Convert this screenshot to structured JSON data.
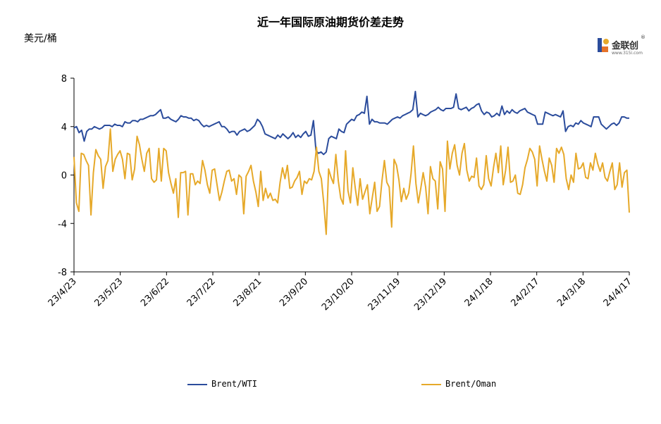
{
  "header": {
    "title": "近一年国际原油期货价差走势",
    "unit": "美元/桶"
  },
  "logo": {
    "brand": "金联创",
    "reg": "®",
    "url": "www.315i.com"
  },
  "colors": {
    "wti": "#2b4c9c",
    "oman": "#e6a92a",
    "axis": "#000000"
  },
  "chart_data": {
    "type": "line",
    "title": "近一年国际原油期货价差走势",
    "ylabel": "美元/桶",
    "ylim": [
      -8,
      8
    ],
    "yticks": [
      -8,
      -4,
      0,
      4,
      8
    ],
    "x_range": [
      "23/4/23",
      "24/4/23"
    ],
    "xticks": [
      "23/4/23",
      "23/5/23",
      "23/6/22",
      "23/7/22",
      "23/8/21",
      "23/9/20",
      "23/10/20",
      "23/11/19",
      "23/12/19",
      "24/1/18",
      "24/2/17",
      "24/3/18",
      "24/4/17"
    ],
    "legend_position": "bottom",
    "series": [
      {
        "name": "Brent/WTI",
        "color": "#2b4c9c",
        "values": [
          3.9,
          4.0,
          3.5,
          3.7,
          2.8,
          3.6,
          3.8,
          3.8,
          4.0,
          3.9,
          3.8,
          3.9,
          4.1,
          4.1,
          4.1,
          4.0,
          4.2,
          4.1,
          4.1,
          4.0,
          4.4,
          4.3,
          4.3,
          4.5,
          4.5,
          4.4,
          4.6,
          4.6,
          4.7,
          4.8,
          4.9,
          4.9,
          5.0,
          5.2,
          5.4,
          4.7,
          4.7,
          4.8,
          4.6,
          4.5,
          4.4,
          4.6,
          4.9,
          4.8,
          4.8,
          4.7,
          4.7,
          4.5,
          4.6,
          4.5,
          4.2,
          4.0,
          4.1,
          4.0,
          4.1,
          4.2,
          4.3,
          4.4,
          4.0,
          4.0,
          3.8,
          3.5,
          3.6,
          3.6,
          3.3,
          3.6,
          3.7,
          3.8,
          3.6,
          3.7,
          3.9,
          4.1,
          4.6,
          4.4,
          4.0,
          3.4,
          3.3,
          3.2,
          3.1,
          3.0,
          3.3,
          3.1,
          3.4,
          3.2,
          3.0,
          3.2,
          3.5,
          3.1,
          3.3,
          3.1,
          3.4,
          3.6,
          3.2,
          3.3,
          4.5,
          2.0,
          1.8,
          1.9,
          1.7,
          1.9,
          3.0,
          3.2,
          3.1,
          3.0,
          3.8,
          3.6,
          3.5,
          4.2,
          4.4,
          4.6,
          4.5,
          4.9,
          5.0,
          5.2,
          5.1,
          6.5,
          4.2,
          4.6,
          4.4,
          4.4,
          4.3,
          4.3,
          4.3,
          4.2,
          4.4,
          4.6,
          4.7,
          4.8,
          4.7,
          4.9,
          5.0,
          5.1,
          5.2,
          5.4,
          6.9,
          4.8,
          5.1,
          5.0,
          4.9,
          5.0,
          5.2,
          5.3,
          5.4,
          5.6,
          5.4,
          5.3,
          5.5,
          5.5,
          5.5,
          5.6,
          6.7,
          5.5,
          5.4,
          5.5,
          5.6,
          5.3,
          5.5,
          5.6,
          5.8,
          5.9,
          5.3,
          5.0,
          5.2,
          5.1,
          4.8,
          4.9,
          5.1,
          4.9,
          5.7,
          5.0,
          5.3,
          5.1,
          5.4,
          5.2,
          5.1,
          5.3,
          5.4,
          5.5,
          5.2,
          5.1,
          5.0,
          4.9,
          4.2,
          4.2,
          4.2,
          5.2,
          5.1,
          5.0,
          4.9,
          5.0,
          4.9,
          4.8,
          5.3,
          3.6,
          4.0,
          4.1,
          4.0,
          4.3,
          4.2,
          4.5,
          4.3,
          4.2,
          4.1,
          4.0,
          4.8,
          4.8,
          4.8,
          4.2,
          4.0,
          3.8,
          4.0,
          4.2,
          4.3,
          4.1,
          4.3,
          4.8,
          4.8,
          4.7,
          4.7
        ]
      },
      {
        "name": "Brent/Oman",
        "color": "#e6a92a",
        "values": [
          1.5,
          -2.3,
          -3.0,
          1.8,
          1.7,
          1.2,
          0.8,
          -3.3,
          0.2,
          2.1,
          1.6,
          1.3,
          -1.1,
          0.7,
          1.2,
          3.8,
          0.3,
          1.3,
          1.7,
          2.0,
          1.3,
          -0.3,
          1.8,
          1.7,
          -0.4,
          0.5,
          3.2,
          2.5,
          1.3,
          0.3,
          1.8,
          2.2,
          -0.3,
          -0.6,
          -0.4,
          2.2,
          -0.5,
          2.2,
          2.0,
          0.2,
          -0.7,
          -1.5,
          -0.3,
          -3.5,
          0.2,
          0.2,
          0.3,
          -3.3,
          0.1,
          0.1,
          -0.8,
          -0.5,
          -0.7,
          1.2,
          0.4,
          -0.8,
          -1.5,
          0.4,
          0.5,
          -0.8,
          -2.1,
          -1.4,
          -0.5,
          0.3,
          0.4,
          -0.5,
          -0.3,
          -1.6,
          0.0,
          -0.2,
          -3.2,
          -0.1,
          0.3,
          0.8,
          -0.5,
          -1.4,
          -2.6,
          0.3,
          -2.1,
          -1.1,
          -1.9,
          -1.5,
          -2.1,
          -2.0,
          -2.3,
          -0.6,
          0.6,
          -0.3,
          0.8,
          -1.1,
          -1.0,
          -0.5,
          -0.2,
          0.3,
          -1.6,
          -0.5,
          -0.7,
          -0.3,
          -0.4,
          0.3,
          2.3,
          0.3,
          -0.3,
          -2.3,
          -4.9,
          0.5,
          -0.2,
          -0.7,
          1.7,
          -0.5,
          -1.9,
          -2.4,
          2.0,
          -1.3,
          -2.3,
          0.6,
          -1.1,
          -2.5,
          -0.3,
          -2.0,
          -1.4,
          -0.8,
          -3.2,
          -1.9,
          -0.6,
          -3.0,
          -2.6,
          -0.5,
          1.2,
          -0.6,
          -1.0,
          -4.3,
          1.3,
          0.8,
          -0.4,
          -2.2,
          -1.1,
          -2.0,
          -1.5,
          0.1,
          2.4,
          -0.7,
          -2.3,
          -1.1,
          0.2,
          -1.0,
          -3.2,
          0.7,
          -0.3,
          -0.5,
          -2.8,
          1.1,
          0.5,
          -3.0,
          2.8,
          0.5,
          1.8,
          2.5,
          0.8,
          0.0,
          1.8,
          2.6,
          0.4,
          -0.5,
          -0.1,
          -0.2,
          1.4,
          -0.9,
          -1.2,
          -0.8,
          1.6,
          -0.3,
          -0.9,
          0.6,
          1.8,
          0.2,
          2.4,
          -0.8,
          0.4,
          2.3,
          -0.6,
          -0.5,
          0.0,
          -1.5,
          -1.6,
          -0.8,
          0.6,
          1.3,
          2.2,
          1.9,
          1.3,
          -0.9,
          2.4,
          1.3,
          0.3,
          -0.5,
          1.4,
          0.8,
          -0.6,
          2.2,
          1.8,
          2.3,
          1.7,
          -0.3,
          -1.2,
          0.0,
          -0.6,
          1.8,
          0.5,
          0.6,
          1.0,
          -0.2,
          -0.3,
          1.0,
          0.4,
          1.8,
          0.9,
          0.3,
          1.0,
          -0.2,
          -0.5,
          0.3,
          1.0,
          -1.2,
          -0.8,
          1.0,
          -1.0,
          0.2,
          0.4,
          -3.1
        ]
      }
    ]
  }
}
